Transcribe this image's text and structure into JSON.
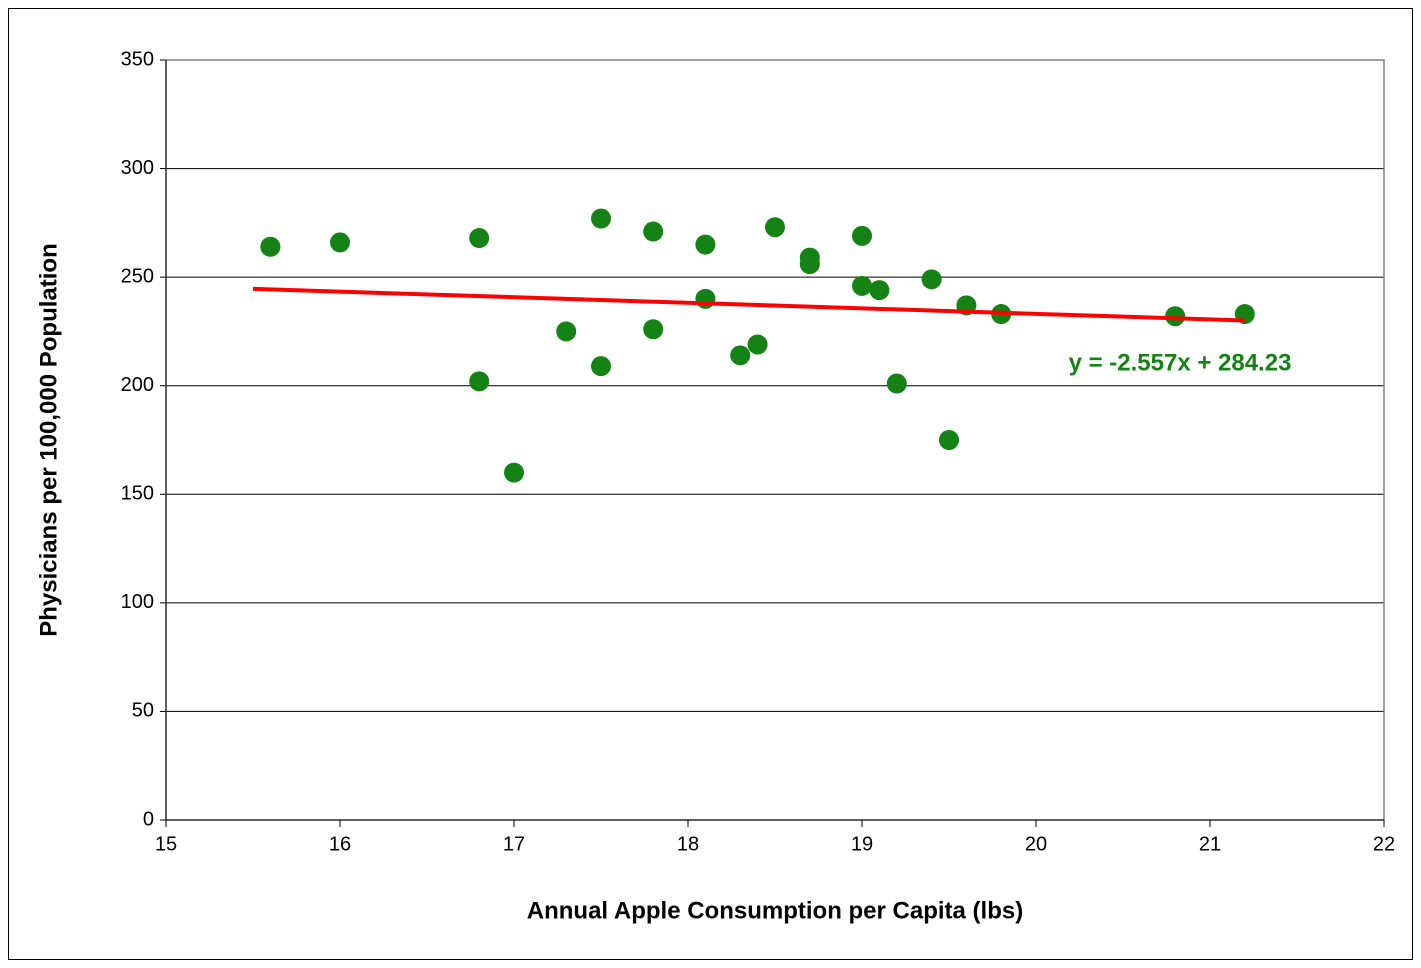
{
  "chart_data": {
    "type": "scatter",
    "x_label": "Annual Apple Consumption per Capita (lbs)",
    "y_label": "Physicians per 100,000 Population",
    "series": [
      {
        "color": "#148214",
        "x": [
          15.6,
          16.0,
          16.8,
          16.8,
          17.0,
          17.3,
          17.5,
          17.5,
          17.8,
          17.8,
          18.1,
          18.1,
          18.3,
          18.4,
          18.5,
          18.7,
          18.7,
          19.0,
          19.0,
          19.1,
          19.2,
          19.4,
          19.5,
          19.6,
          19.8,
          20.8,
          21.2
        ],
        "values": [
          264,
          266,
          268,
          202,
          160,
          225,
          277,
          209,
          271,
          226,
          265,
          240,
          214,
          219,
          273,
          259,
          256,
          269,
          246,
          244,
          201,
          249,
          175,
          237,
          233,
          232,
          233
        ]
      }
    ],
    "trendline": {
      "color": "#ff0000",
      "slope": -2.557,
      "intercept": 284.23,
      "x": [
        15.5,
        21.2
      ],
      "label": "y = -2.557x + 284.23",
      "label_color": "#148214"
    },
    "xlim": [
      15,
      22
    ],
    "xticks": [
      15,
      16,
      17,
      18,
      19,
      20,
      21,
      22
    ],
    "ylim": [
      0,
      350
    ],
    "yticks": [
      0,
      50,
      100,
      150,
      200,
      250,
      300,
      350
    ],
    "grid": true
  }
}
